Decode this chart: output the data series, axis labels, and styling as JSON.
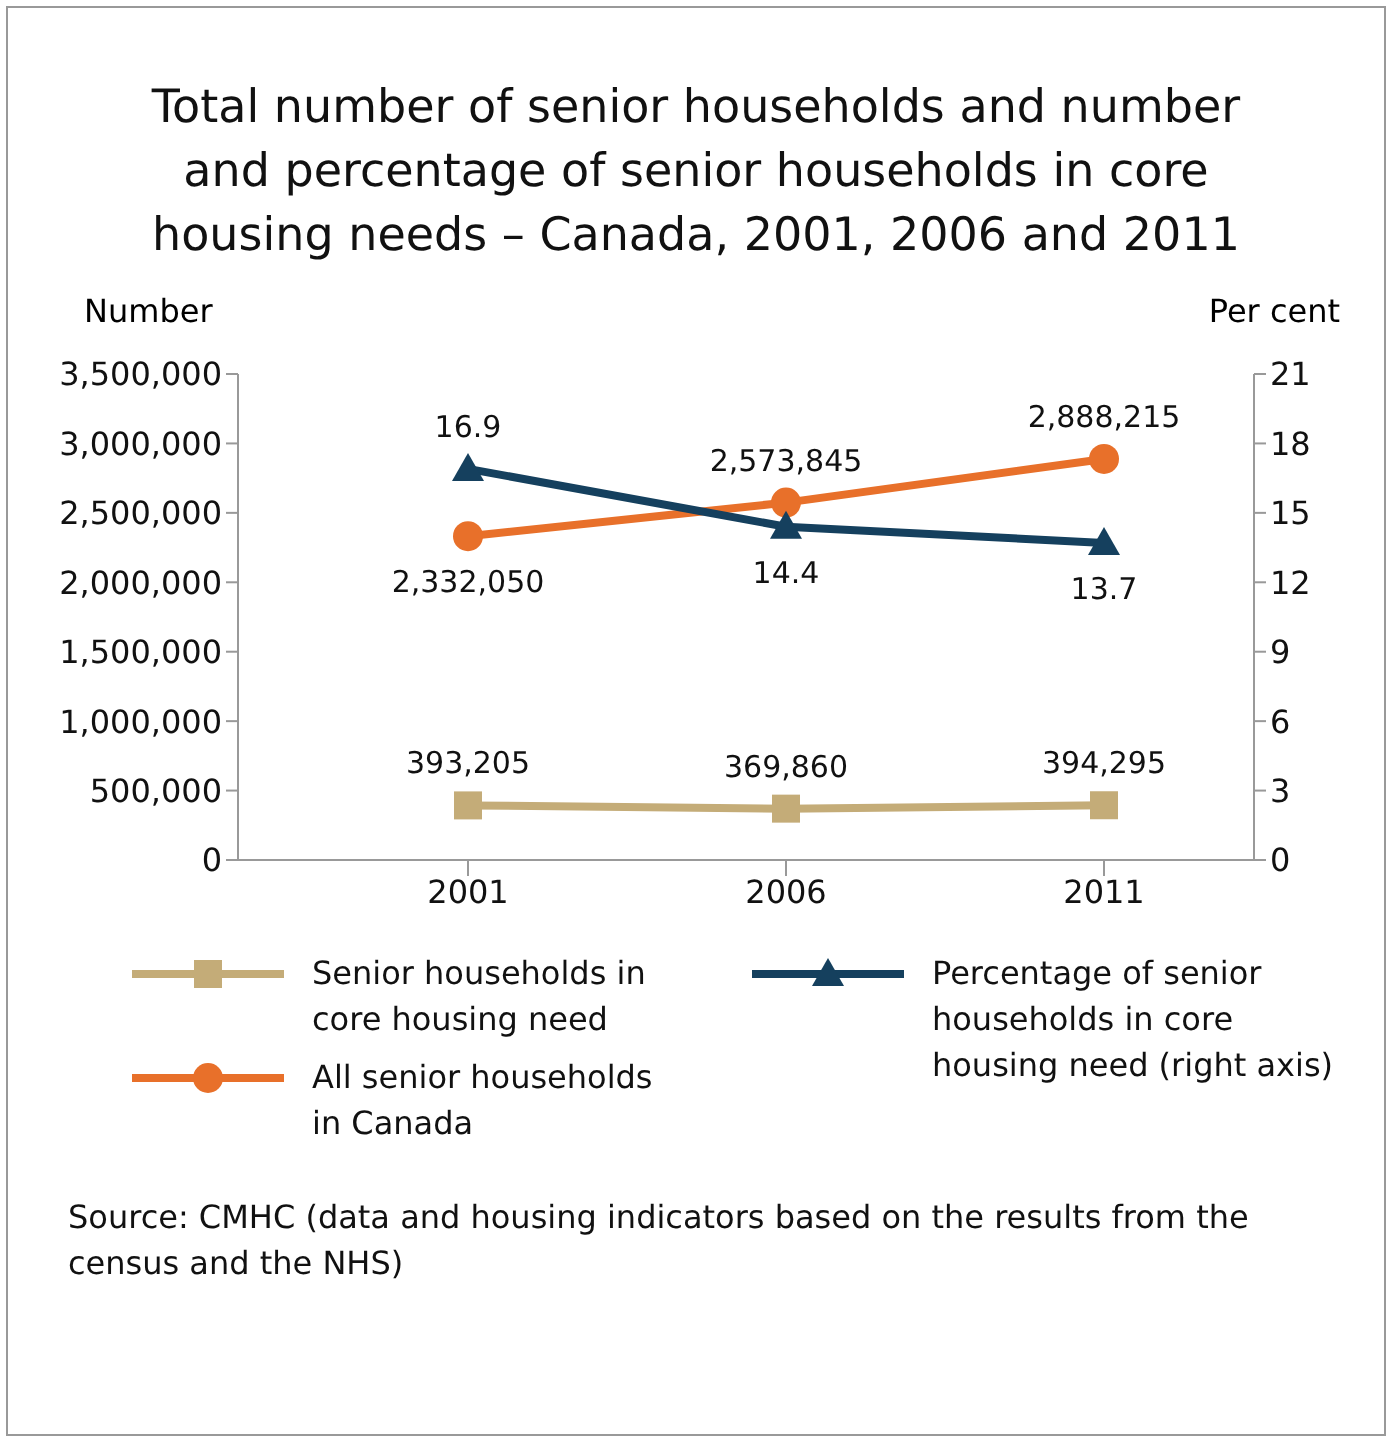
{
  "chart_data": {
    "type": "line",
    "title": "Total number of senior households and number and percentage of senior households in core housing needs – Canada, 2001, 2006 and 2011",
    "ylabel": "Number",
    "y2label": "Per cent",
    "categories": [
      "2001",
      "2006",
      "2011"
    ],
    "series": [
      {
        "name": "Senior households in core housing need",
        "color": "#c4ac78",
        "marker": "square",
        "values": [
          393205,
          369860,
          394295
        ],
        "value_labels": [
          "393,205",
          "369,860",
          "394,295"
        ]
      },
      {
        "name": "All senior households in Canada",
        "color": "#e8702a",
        "marker": "circle",
        "values": [
          2332050,
          2573845,
          2888215
        ],
        "value_labels": [
          "2,332,050",
          "2,573,845",
          "2,888,215"
        ]
      },
      {
        "name": "Percentage of senior households in core housing need (right axis)",
        "color": "#15405e",
        "marker": "triangle",
        "axis": "y2",
        "values": [
          16.9,
          14.4,
          13.7
        ],
        "value_labels": [
          "16.9",
          "14.4",
          "13.7"
        ]
      }
    ],
    "ylim": [
      0,
      3500000
    ],
    "yticks": [
      {
        "value": 0,
        "label": "0"
      },
      {
        "value": 500000,
        "label": "500,000"
      },
      {
        "value": 1000000,
        "label": "1,000,000"
      },
      {
        "value": 1500000,
        "label": "1,500,000"
      },
      {
        "value": 2000000,
        "label": "2,000,000"
      },
      {
        "value": 2500000,
        "label": "2,500,000"
      },
      {
        "value": 3000000,
        "label": "3,000,000"
      },
      {
        "value": 3500000,
        "label": "3,500,000"
      }
    ],
    "y2lim": [
      0,
      21
    ],
    "y2ticks": [
      0,
      3,
      6,
      9,
      12,
      15,
      18,
      21
    ],
    "grid": false,
    "legend": "bottom",
    "line_style": "solid",
    "annotations": [
      "Source: CMHC (data and housing indicators based on the results from the census and the NHS)"
    ]
  }
}
